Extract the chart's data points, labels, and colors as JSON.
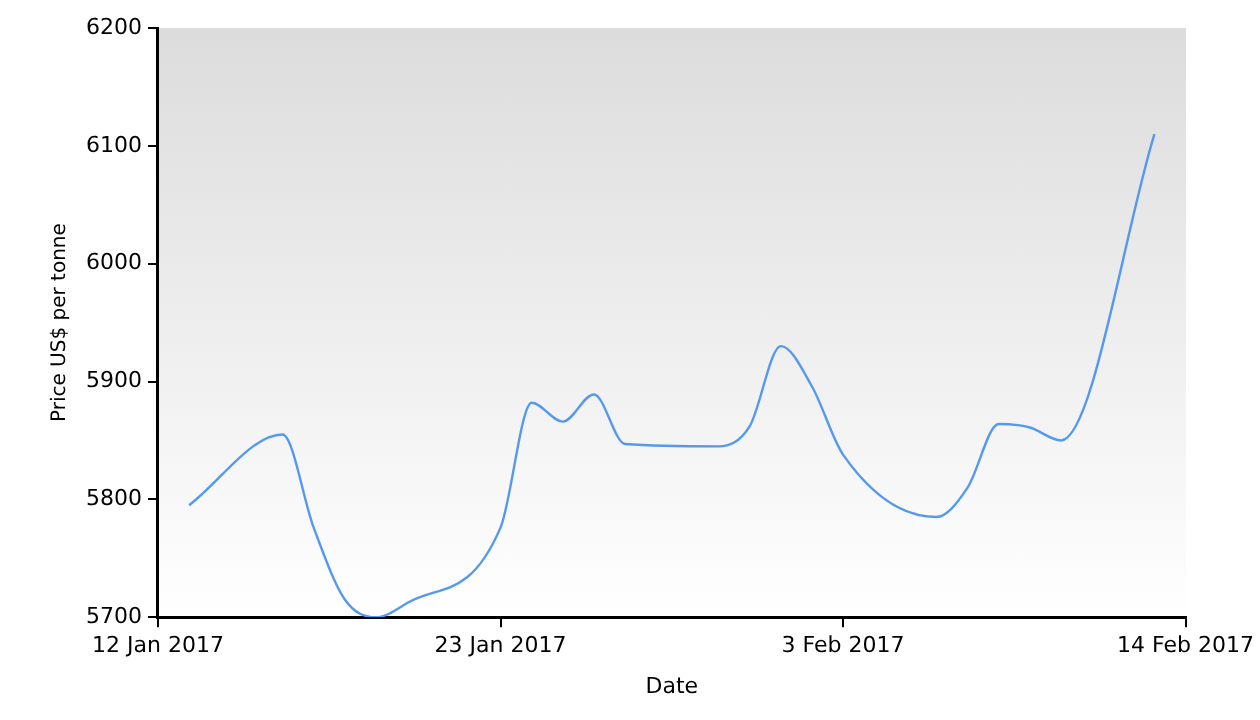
{
  "chart_data": {
    "type": "line",
    "xlabel": "Date",
    "ylabel": "Price US$ per tonne",
    "x": [
      "2017-01-13",
      "2017-01-16",
      "2017-01-17",
      "2017-01-18",
      "2017-01-19",
      "2017-01-20",
      "2017-01-23",
      "2017-01-24",
      "2017-01-25",
      "2017-01-26",
      "2017-01-27",
      "2017-01-30",
      "2017-01-31",
      "2017-02-01",
      "2017-02-02",
      "2017-02-03",
      "2017-02-06",
      "2017-02-07",
      "2017-02-08",
      "2017-02-09",
      "2017-02-10",
      "2017-02-13"
    ],
    "series": [
      {
        "color": "#5599ee",
        "values": [
          5795,
          5855,
          5776,
          5715,
          5700,
          5712,
          5776,
          5882,
          5866,
          5889,
          5847,
          5845,
          5862,
          5930,
          5896,
          5838,
          5785,
          5810,
          5864,
          5861,
          5850,
          6110
        ]
      }
    ],
    "xlim": [
      "2017-01-12",
      "2017-02-14"
    ],
    "xticks": [
      {
        "value": "2017-01-12",
        "label": "12 Jan 2017"
      },
      {
        "value": "2017-01-23",
        "label": "23 Jan 2017"
      },
      {
        "value": "2017-02-03",
        "label": "3 Feb 2017"
      },
      {
        "value": "2017-02-14",
        "label": "14 Feb 2017"
      }
    ],
    "ylim": [
      5700,
      6200
    ],
    "yticks": [
      5700,
      5800,
      5900,
      6000,
      6100,
      6200
    ],
    "grid": false,
    "legend": false,
    "marker": "none",
    "line_style": "solid"
  }
}
